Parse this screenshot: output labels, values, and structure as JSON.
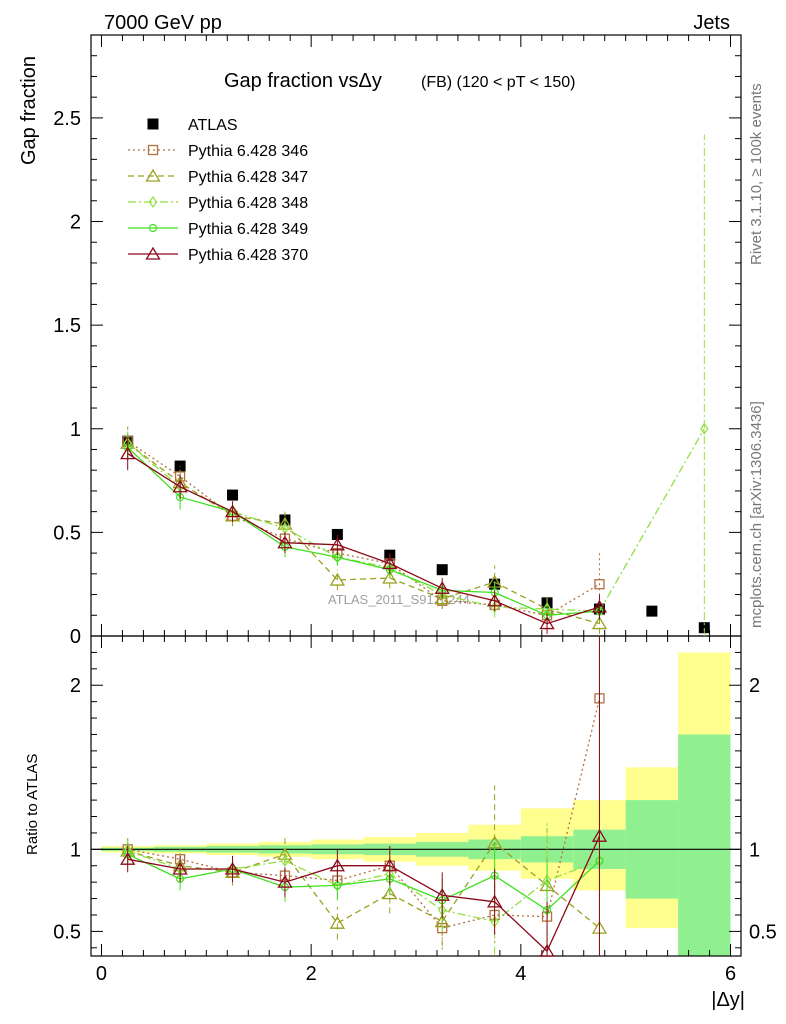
{
  "header": {
    "left": "7000 GeV pp",
    "right": "Jets",
    "title": "Gap fraction vsΔy",
    "title_extra": "(FB)  (120 < pT < 150)",
    "watermark": "ATLAS_2011_S9126244"
  },
  "side_text": {
    "rivet": "Rivet 3.1.10, ≥ 100k events",
    "mcplots": "mcplots.cern.ch [arXiv:1306.3436]"
  },
  "colors": {
    "p346": "#b07040",
    "p347": "#9aa020",
    "p348": "#90e040",
    "p349": "#40e020",
    "p370": "#8b0a1a",
    "band_green": "#90f090",
    "band_yellow": "#ffff90"
  },
  "chart_data": [
    {
      "type": "line",
      "title": "Gap fraction vsΔy (FB) (120 < pT < 150)",
      "ylabel": "Gap fraction",
      "xlabel": "|Δy|",
      "xlim": [
        -0.1,
        6.1
      ],
      "ylim": [
        0,
        2.9
      ],
      "x_ticks": [
        "0",
        "2",
        "4",
        "6"
      ],
      "y_ticks": [
        "0",
        "0.5",
        "1",
        "1.5",
        "2",
        "2.5"
      ],
      "legend_position": "top-left",
      "x": [
        0.25,
        0.75,
        1.25,
        1.75,
        2.25,
        2.75,
        3.25,
        3.75,
        4.25,
        4.75,
        5.25,
        5.75
      ],
      "series": [
        {
          "name": "ATLAS",
          "key": "atlas",
          "marker": "square",
          "values": [
            0.94,
            0.82,
            0.68,
            0.56,
            0.49,
            0.39,
            0.32,
            0.25,
            0.16,
            0.13,
            0.12,
            0.04
          ]
        },
        {
          "name": "Pythia 6.428 346",
          "key": "p346",
          "marker": "square-open",
          "dash": "2,3",
          "values": [
            0.94,
            0.77,
            0.58,
            0.47,
            0.4,
            0.35,
            0.17,
            0.15,
            0.1,
            0.25,
            null,
            null
          ],
          "errors": [
            0.06,
            0.05,
            0.05,
            0.05,
            0.04,
            0.04,
            0.04,
            0.04,
            0.05,
            0.15,
            null,
            null
          ]
        },
        {
          "name": "Pythia 6.428 347",
          "key": "p347",
          "marker": "triangle-open",
          "dash": "6,4",
          "values": [
            0.93,
            0.74,
            0.58,
            0.54,
            0.27,
            0.28,
            0.18,
            0.26,
            0.13,
            0.06,
            null,
            null
          ],
          "errors": [
            0.08,
            0.06,
            0.05,
            0.06,
            0.05,
            0.05,
            0.05,
            0.08,
            0.06,
            0.05,
            null,
            null
          ]
        },
        {
          "name": "Pythia 6.428 348",
          "key": "p348",
          "marker": "diamond-open",
          "dash": "8,3,2,3",
          "values": [
            0.93,
            0.72,
            0.6,
            0.52,
            0.38,
            0.33,
            0.2,
            0.14,
            0.13,
            0.12,
            null,
            1.0
          ],
          "errors": [
            0.06,
            0.05,
            0.05,
            0.05,
            0.04,
            0.04,
            0.04,
            0.05,
            0.06,
            0.05,
            null,
            1.42
          ]
        },
        {
          "name": "Pythia 6.428 349",
          "key": "p349",
          "marker": "circle-open",
          "dash": "",
          "values": [
            0.91,
            0.67,
            0.6,
            0.43,
            0.38,
            0.32,
            0.22,
            0.21,
            0.1,
            0.12,
            null,
            null
          ],
          "errors": [
            0.06,
            0.06,
            0.05,
            0.05,
            0.04,
            0.04,
            0.04,
            0.05,
            0.05,
            0.05,
            null,
            null
          ]
        },
        {
          "name": "Pythia 6.428 370",
          "key": "p370",
          "marker": "triangle-open",
          "dash": "",
          "values": [
            0.88,
            0.72,
            0.6,
            0.45,
            0.44,
            0.35,
            0.23,
            0.17,
            0.06,
            0.14,
            null,
            null
          ],
          "errors": [
            0.08,
            0.06,
            0.05,
            0.05,
            0.05,
            0.05,
            0.05,
            0.05,
            0.05,
            0.06,
            null,
            null
          ]
        }
      ]
    },
    {
      "type": "line",
      "ylabel": "Ratio to ATLAS",
      "xlabel": "|Δy|",
      "xlim": [
        -0.1,
        6.1
      ],
      "ylim": [
        0.35,
        2.3
      ],
      "y_ticks": [
        "0.5",
        "1",
        "2"
      ],
      "x": [
        0.25,
        0.75,
        1.25,
        1.75,
        2.25,
        2.75,
        3.25,
        3.75,
        4.25,
        4.75,
        5.25,
        5.75
      ],
      "bands": {
        "x_edges": [
          0.0,
          0.5,
          1.0,
          1.5,
          2.0,
          2.5,
          3.0,
          3.5,
          4.0,
          4.5,
          5.0,
          5.5,
          6.0
        ],
        "green_halfwidth": [
          0.01,
          0.015,
          0.02,
          0.025,
          0.03,
          0.035,
          0.045,
          0.06,
          0.08,
          0.12,
          0.3,
          0.7
        ],
        "yellow_low": [
          0.98,
          0.975,
          0.965,
          0.955,
          0.94,
          0.925,
          0.9,
          0.87,
          0.82,
          0.75,
          0.52,
          0.33
        ],
        "yellow_high": [
          1.02,
          1.025,
          1.035,
          1.045,
          1.06,
          1.075,
          1.1,
          1.15,
          1.25,
          1.3,
          1.5,
          2.2
        ]
      },
      "series": [
        {
          "key": "p346",
          "values": [
            1.0,
            0.94,
            0.86,
            0.84,
            0.81,
            0.9,
            0.52,
            0.6,
            0.59,
            1.92,
            null,
            null
          ],
          "errors": [
            0.07,
            0.07,
            0.08,
            0.09,
            0.09,
            0.11,
            0.13,
            0.17,
            0.3,
            1.2,
            null,
            null
          ]
        },
        {
          "key": "p347",
          "values": [
            0.99,
            0.9,
            0.86,
            0.97,
            0.55,
            0.73,
            0.56,
            1.04,
            0.78,
            0.52,
            null,
            null
          ],
          "errors": [
            0.08,
            0.08,
            0.08,
            0.12,
            0.1,
            0.12,
            0.15,
            0.35,
            0.35,
            0.4,
            null,
            null
          ]
        },
        {
          "key": "p348",
          "values": [
            0.99,
            0.88,
            0.88,
            0.93,
            0.78,
            0.85,
            0.63,
            0.56,
            0.81,
            0.93,
            null,
            null
          ],
          "errors": [
            0.07,
            0.07,
            0.08,
            0.09,
            0.09,
            0.1,
            0.13,
            0.2,
            0.35,
            1.3,
            null,
            null
          ]
        },
        {
          "key": "p349",
          "values": [
            0.97,
            0.82,
            0.88,
            0.77,
            0.78,
            0.82,
            0.69,
            0.84,
            0.63,
            0.93,
            null,
            null
          ],
          "errors": [
            0.07,
            0.07,
            0.08,
            0.09,
            0.09,
            0.1,
            0.13,
            0.2,
            0.3,
            1.3,
            null,
            null
          ]
        },
        {
          "key": "p370",
          "values": [
            0.94,
            0.88,
            0.88,
            0.8,
            0.9,
            0.9,
            0.72,
            0.68,
            0.38,
            1.08,
            null,
            null
          ],
          "errors": [
            0.08,
            0.08,
            0.08,
            0.09,
            0.1,
            0.12,
            0.14,
            0.2,
            0.3,
            1.3,
            null,
            null
          ]
        }
      ]
    }
  ]
}
